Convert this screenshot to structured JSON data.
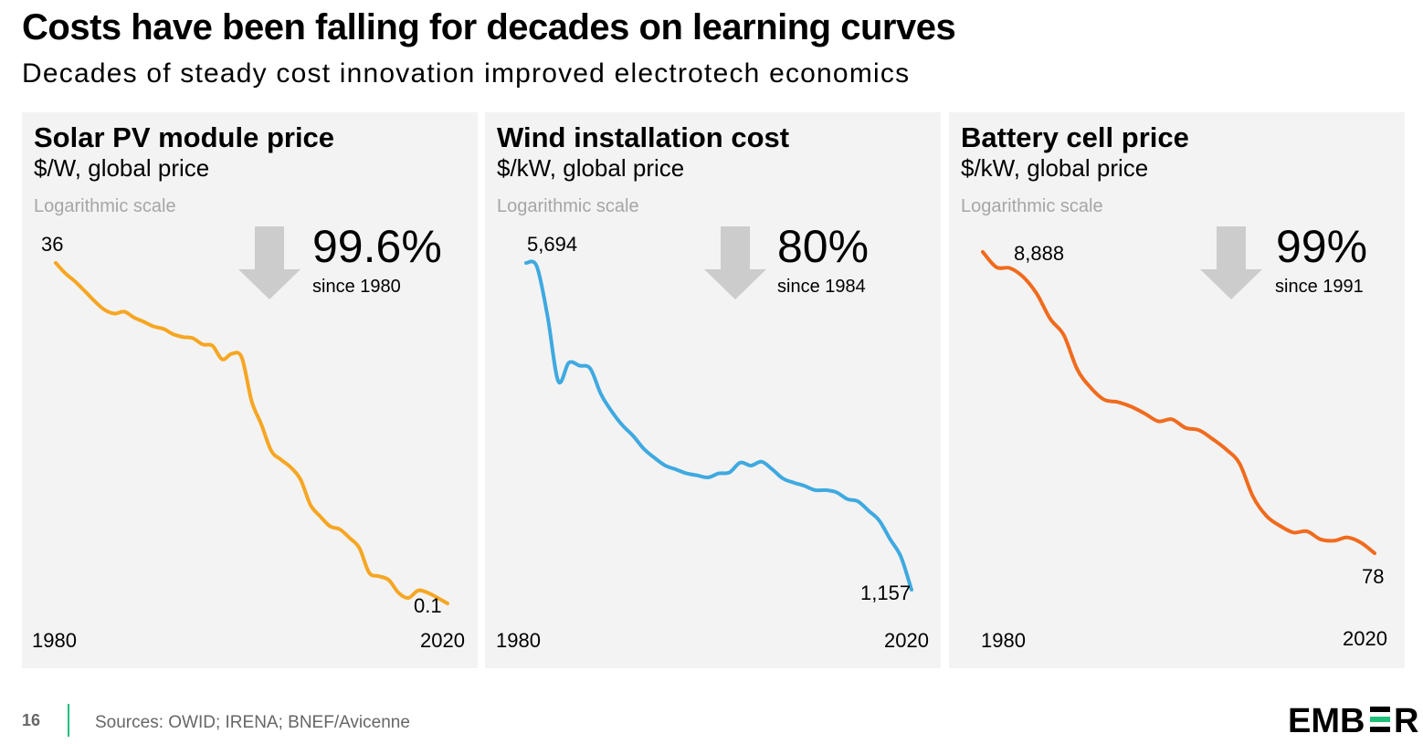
{
  "title": "Costs have been falling for decades on learning curves",
  "subtitle": "Decades of steady cost innovation improved electrotech economics",
  "footer": {
    "page_number": "16",
    "sources": "Sources: OWID; IRENA; BNEF/Avicenne"
  },
  "brand": {
    "logo_text": "EMBER",
    "accent_color": "#21c07a"
  },
  "panels": [
    {
      "title": "Solar PV module price",
      "unit": "$/W, global price",
      "scale_note": "Logarithmic scale",
      "pct": "99.6%",
      "since": "since 1980",
      "start_label": "36",
      "end_label": "0.1",
      "x_start": "1980",
      "x_end": "2020"
    },
    {
      "title": "Wind installation cost",
      "unit": "$/kW, global price",
      "scale_note": "Logarithmic scale",
      "pct": "80%",
      "since": "since 1984",
      "start_label": "5,694",
      "end_label": "1,157",
      "x_start": "1980",
      "x_end": "2020"
    },
    {
      "title": "Battery cell price",
      "unit": "$/kW, global price",
      "scale_note": "Logarithmic scale",
      "pct": "99%",
      "since": "since 1991",
      "start_label": "8,888",
      "end_label": "78",
      "x_start": "1980",
      "x_end": "2020"
    }
  ],
  "chart_data": [
    {
      "type": "line",
      "title": "Solar PV module price",
      "ylabel": "$/W, global price",
      "yscale": "log",
      "xlim": [
        1980,
        2020
      ],
      "ylim": [
        0.1,
        36
      ],
      "color": "#f6a623",
      "series": [
        {
          "x": [
            1980,
            1981,
            1982,
            1983,
            1984,
            1985,
            1986,
            1987,
            1988,
            1989,
            1990,
            1991,
            1992,
            1993,
            1994,
            1995,
            1996,
            1997,
            1998,
            1999,
            2000,
            2001,
            2002,
            2003,
            2004,
            2005,
            2006,
            2007,
            2008,
            2009,
            2010,
            2011,
            2012,
            2013,
            2014,
            2015,
            2016,
            2017,
            2018,
            2019,
            2020
          ],
          "values": [
            36,
            30,
            26,
            22,
            18.5,
            16,
            15,
            15.5,
            14,
            13,
            12,
            11.5,
            10.5,
            10,
            9.8,
            8.8,
            8.6,
            6.8,
            7.5,
            7,
            3.3,
            2.2,
            1.4,
            1.2,
            1.05,
            0.85,
            0.55,
            0.45,
            0.38,
            0.36,
            0.31,
            0.26,
            0.17,
            0.16,
            0.15,
            0.12,
            0.11,
            0.125,
            0.12,
            0.11,
            0.1
          ]
        }
      ]
    },
    {
      "type": "line",
      "title": "Wind installation cost",
      "ylabel": "$/kW, global price",
      "yscale": "log",
      "xlim": [
        1980,
        2020
      ],
      "ylim": [
        1157,
        5694
      ],
      "color": "#3fa9e0",
      "series": [
        {
          "x": [
            1984,
            1985,
            1986,
            1987,
            1988,
            1989,
            1990,
            1991,
            1992,
            1993,
            1994,
            1995,
            1996,
            1997,
            1998,
            1999,
            2000,
            2001,
            2002,
            2003,
            2004,
            2005,
            2006,
            2007,
            2008,
            2009,
            2010,
            2011,
            2012,
            2013,
            2014,
            2015,
            2016,
            2017,
            2018,
            2019,
            2020
          ],
          "values": [
            5694,
            5600,
            4400,
            3200,
            3500,
            3450,
            3400,
            3000,
            2760,
            2580,
            2450,
            2300,
            2200,
            2120,
            2080,
            2040,
            2020,
            2000,
            2040,
            2050,
            2150,
            2120,
            2160,
            2080,
            1990,
            1950,
            1920,
            1880,
            1880,
            1860,
            1800,
            1780,
            1700,
            1620,
            1480,
            1360,
            1157
          ]
        }
      ]
    },
    {
      "type": "line",
      "title": "Battery cell price",
      "ylabel": "$/kW, global price",
      "yscale": "log",
      "xlim": [
        1980,
        2020
      ],
      "ylim": [
        78,
        8888
      ],
      "color": "#f06b1e",
      "series": [
        {
          "x": [
            1991,
            1992,
            1993,
            1994,
            1995,
            1996,
            1997,
            1998,
            1999,
            2000,
            2001,
            2002,
            2003,
            2004,
            2005,
            2006,
            2007,
            2008,
            2009,
            2010,
            2011,
            2012,
            2013,
            2014,
            2015,
            2016,
            2017,
            2018,
            2019,
            2020
          ],
          "values": [
            8888,
            7000,
            6900,
            6000,
            4600,
            3100,
            2400,
            1400,
            1050,
            870,
            840,
            780,
            700,
            620,
            640,
            560,
            540,
            470,
            400,
            320,
            190,
            140,
            120,
            108,
            110,
            97,
            95,
            100,
            92,
            78
          ]
        }
      ]
    }
  ]
}
